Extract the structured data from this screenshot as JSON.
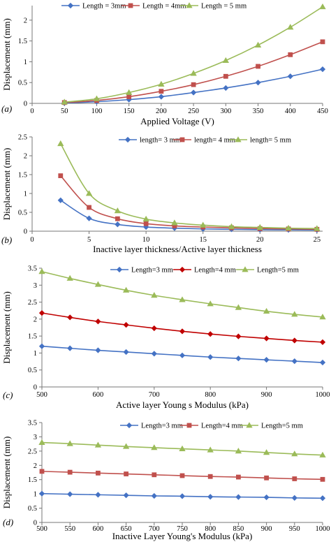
{
  "chart_data": [
    {
      "type": "line",
      "panel_label": "(a)",
      "xlabel": "Applied Voltage (V)",
      "ylabel": "Displacement (mm)",
      "x": [
        50,
        100,
        150,
        200,
        250,
        300,
        350,
        400,
        450
      ],
      "x_ticks": [
        "0",
        "50",
        "100",
        "150",
        "200",
        "250",
        "300",
        "350",
        "400",
        "450"
      ],
      "xlim": [
        0,
        450
      ],
      "ylim": [
        0,
        2.35
      ],
      "y_ticks": [
        0,
        0.5,
        1,
        1.5,
        2
      ],
      "y_tick_labels": [
        "0",
        "0.5",
        "1",
        "1.5",
        "2"
      ],
      "legend_position": "top-left",
      "series": [
        {
          "name": "Length = 3mm",
          "color": "#4472C4",
          "marker": "diamond",
          "values": [
            0.01,
            0.04,
            0.09,
            0.16,
            0.26,
            0.37,
            0.5,
            0.65,
            0.82
          ]
        },
        {
          "name": "Length = 4mm",
          "color": "#C0504D",
          "marker": "square",
          "values": [
            0.02,
            0.07,
            0.16,
            0.29,
            0.45,
            0.65,
            0.89,
            1.17,
            1.48
          ]
        },
        {
          "name": "Length = 5 mm",
          "color": "#9BBB59",
          "marker": "triangle",
          "values": [
            0.03,
            0.11,
            0.26,
            0.46,
            0.72,
            1.03,
            1.4,
            1.83,
            2.32
          ]
        }
      ]
    },
    {
      "type": "line",
      "panel_label": "(b)",
      "xlabel": "Inactive layer thickness/Active layer thickness",
      "ylabel": "Displacement (mm)",
      "x": [
        2.5,
        5,
        7.5,
        10,
        12.5,
        15,
        17.5,
        20,
        22.5,
        25
      ],
      "x_ticks": [
        "0",
        "5",
        "10",
        "15",
        "20",
        "25"
      ],
      "xlim": [
        0,
        25.5
      ],
      "ylim": [
        0,
        2.5
      ],
      "y_ticks": [
        0,
        0.5,
        1,
        1.5,
        2,
        2.5
      ],
      "y_tick_labels": [
        "0",
        "0.5",
        "1",
        "1.5",
        "2",
        "2.5"
      ],
      "legend_position": "top-right",
      "series": [
        {
          "name": "length= 3 mm",
          "color": "#4472C4",
          "marker": "diamond",
          "values": [
            0.82,
            0.34,
            0.18,
            0.11,
            0.08,
            0.06,
            0.05,
            0.04,
            0.035,
            0.03
          ]
        },
        {
          "name": "length= 4 mm",
          "color": "#C0504D",
          "marker": "square",
          "values": [
            1.47,
            0.63,
            0.33,
            0.2,
            0.14,
            0.11,
            0.09,
            0.07,
            0.06,
            0.05
          ]
        },
        {
          "name": "length= 5 mm",
          "color": "#9BBB59",
          "marker": "triangle",
          "values": [
            2.32,
            1.0,
            0.54,
            0.32,
            0.22,
            0.16,
            0.12,
            0.1,
            0.08,
            0.07
          ]
        }
      ]
    },
    {
      "type": "line",
      "panel_label": "(c)",
      "xlabel": "Active layer Young s Modulus (kPa)",
      "ylabel": "Displacement (mm)",
      "x": [
        500,
        550,
        600,
        650,
        700,
        750,
        800,
        850,
        900,
        950,
        1000
      ],
      "x_ticks": [
        "500",
        "600",
        "700",
        "800",
        "900",
        "1000"
      ],
      "xlim": [
        500,
        1000
      ],
      "ylim": [
        0,
        3.5
      ],
      "y_ticks": [
        0,
        0.5,
        1,
        1.5,
        2,
        2.5,
        3,
        3.5
      ],
      "y_tick_labels": [
        "0",
        "0.5",
        "1",
        "1.5",
        "2",
        "2.5",
        "3",
        "3.5"
      ],
      "legend_position": "top",
      "series": [
        {
          "name": "Length=3 mm",
          "color": "#4472C4",
          "marker": "diamond",
          "values": [
            1.2,
            1.14,
            1.08,
            1.03,
            0.98,
            0.93,
            0.88,
            0.84,
            0.8,
            0.76,
            0.72
          ]
        },
        {
          "name": "Length=4 mm",
          "color": "#C00000",
          "marker": "diamond",
          "values": [
            2.18,
            2.05,
            1.93,
            1.83,
            1.73,
            1.64,
            1.56,
            1.49,
            1.43,
            1.37,
            1.32
          ]
        },
        {
          "name": "Length=5 mm",
          "color": "#9BBB59",
          "marker": "triangle",
          "values": [
            3.4,
            3.2,
            3.02,
            2.85,
            2.7,
            2.57,
            2.45,
            2.34,
            2.23,
            2.14,
            2.06
          ]
        }
      ]
    },
    {
      "type": "line",
      "panel_label": "(d)",
      "xlabel": "Inactive Layer  Young's Modulus (kPa)",
      "ylabel": "Displacement (mm)",
      "x": [
        500,
        550,
        600,
        650,
        700,
        750,
        800,
        850,
        900,
        950,
        1000
      ],
      "x_ticks": [
        "500",
        "550",
        "600",
        "650",
        "700",
        "750",
        "800",
        "850",
        "900",
        "950",
        "1000"
      ],
      "xlim": [
        500,
        1000
      ],
      "ylim": [
        0,
        3.5
      ],
      "y_ticks": [
        0,
        0.5,
        1,
        1.5,
        2,
        2.5,
        3,
        3.5
      ],
      "y_tick_labels": [
        "0",
        "0.5",
        "1",
        "1.5",
        "2",
        "2.5",
        "3",
        "3.5"
      ],
      "legend_position": "top",
      "series": [
        {
          "name": "Length=3 mm",
          "color": "#4472C4",
          "marker": "diamond",
          "values": [
            1.01,
            0.99,
            0.97,
            0.95,
            0.93,
            0.92,
            0.9,
            0.89,
            0.88,
            0.86,
            0.85
          ]
        },
        {
          "name": "Length=4 mm",
          "color": "#C0504D",
          "marker": "square",
          "values": [
            1.79,
            1.76,
            1.73,
            1.7,
            1.67,
            1.64,
            1.61,
            1.59,
            1.56,
            1.53,
            1.51
          ]
        },
        {
          "name": "Length=5 mm",
          "color": "#9BBB59",
          "marker": "triangle",
          "values": [
            2.8,
            2.76,
            2.71,
            2.66,
            2.62,
            2.58,
            2.54,
            2.5,
            2.45,
            2.4,
            2.36
          ]
        }
      ]
    }
  ]
}
